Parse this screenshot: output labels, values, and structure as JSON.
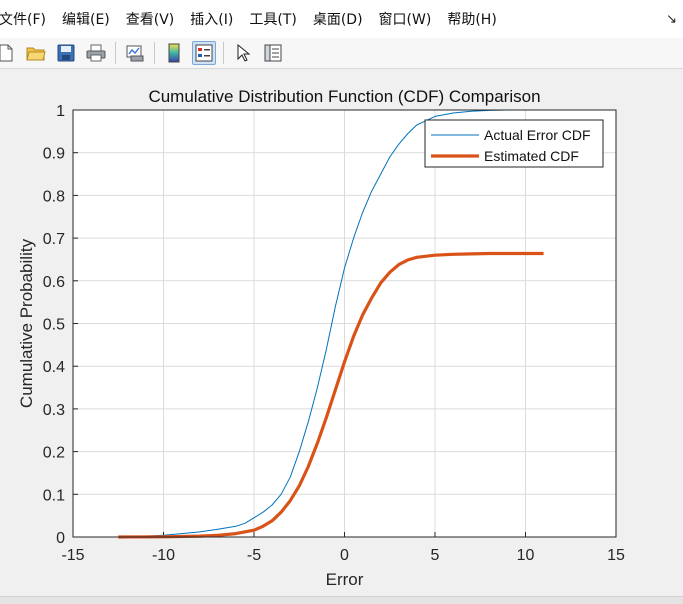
{
  "menubar": {
    "items": [
      "文件(F)",
      "编辑(E)",
      "查看(V)",
      "插入(I)",
      "工具(T)",
      "桌面(D)",
      "窗口(W)",
      "帮助(H)"
    ],
    "dock_arrow": "↘"
  },
  "toolbar": {
    "icons": [
      "new-file-icon",
      "open-folder-icon",
      "save-icon",
      "print-icon",
      "link-plot-icon",
      "colorbar-icon",
      "legend-icon",
      "edit-plot-arrow-icon",
      "property-inspector-icon"
    ],
    "active_icon": "legend-icon"
  },
  "chart_data": {
    "type": "line",
    "title": "Cumulative Distribution Function (CDF) Comparison",
    "xlabel": "Error",
    "ylabel": "Cumulative Probability",
    "xlim": [
      -15,
      15
    ],
    "ylim": [
      0,
      1
    ],
    "xticks": [
      "-15",
      "-10",
      "-5",
      "0",
      "5",
      "10",
      "15"
    ],
    "yticks": [
      "0",
      "0.1",
      "0.2",
      "0.3",
      "0.4",
      "0.5",
      "0.6",
      "0.7",
      "0.8",
      "0.9",
      "1"
    ],
    "grid": true,
    "legend_position": "top-right",
    "series": [
      {
        "name": "Actual Error CDF",
        "color": "#0072bd",
        "x": [
          -12.5,
          -11,
          -10,
          -9,
          -8,
          -7,
          -6,
          -5.5,
          -5,
          -4.5,
          -4,
          -3.5,
          -3,
          -2.5,
          -2,
          -1.5,
          -1,
          -0.5,
          0,
          0.5,
          1,
          1.5,
          2,
          2.5,
          3,
          3.5,
          4,
          5,
          6,
          7,
          8,
          9
        ],
        "y": [
          0,
          0.002,
          0.004,
          0.008,
          0.012,
          0.018,
          0.025,
          0.032,
          0.045,
          0.058,
          0.075,
          0.1,
          0.14,
          0.2,
          0.27,
          0.35,
          0.44,
          0.54,
          0.63,
          0.7,
          0.76,
          0.81,
          0.85,
          0.89,
          0.92,
          0.945,
          0.965,
          0.985,
          0.993,
          0.997,
          0.999,
          1.0
        ]
      },
      {
        "name": "Estimated CDF",
        "color": "#d95319",
        "x": [
          -12.5,
          -10,
          -8,
          -7,
          -6,
          -5,
          -4.5,
          -4,
          -3.5,
          -3,
          -2.5,
          -2,
          -1.5,
          -1,
          -0.5,
          0,
          0.5,
          1,
          1.5,
          2,
          2.5,
          3,
          3.5,
          4,
          5,
          6,
          7,
          8,
          9,
          10,
          11
        ],
        "y": [
          0,
          0.0005,
          0.002,
          0.004,
          0.008,
          0.016,
          0.025,
          0.038,
          0.058,
          0.085,
          0.12,
          0.165,
          0.22,
          0.28,
          0.345,
          0.41,
          0.47,
          0.52,
          0.56,
          0.595,
          0.62,
          0.638,
          0.649,
          0.655,
          0.66,
          0.662,
          0.663,
          0.664,
          0.664,
          0.664,
          0.664
        ]
      }
    ]
  }
}
